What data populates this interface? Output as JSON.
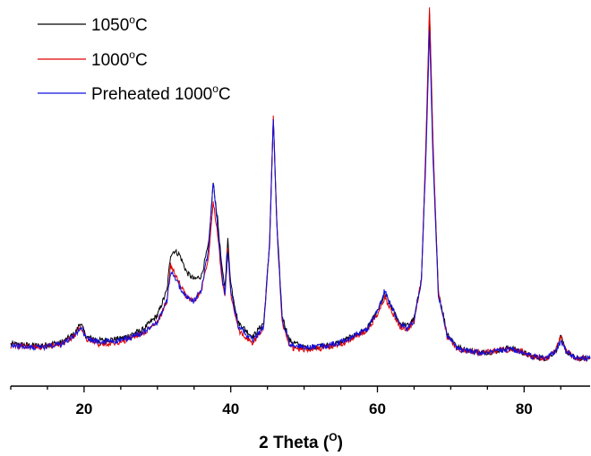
{
  "chart_data": {
    "type": "line",
    "title": "",
    "xlabel": "2 Theta (",
    "xlabel_sup": "O",
    "xlabel_end": ")",
    "ylabel": "",
    "xlim": [
      10,
      89
    ],
    "ylim": [
      0,
      100
    ],
    "x_ticks": [
      20,
      40,
      60,
      80
    ],
    "x_tick_labels": [
      "20",
      "40",
      "60",
      "80"
    ],
    "grid": false,
    "legend_position": "top-left",
    "series": [
      {
        "name": "1050",
        "name_sup": "o",
        "name_end": "C",
        "color": "#000000",
        "points": [
          [
            10,
            7
          ],
          [
            14,
            6.5
          ],
          [
            17,
            7.5
          ],
          [
            18.8,
            10
          ],
          [
            19.5,
            13
          ],
          [
            20.3,
            9
          ],
          [
            22,
            8
          ],
          [
            25,
            8.5
          ],
          [
            28,
            11
          ],
          [
            30,
            15
          ],
          [
            31.3,
            22
          ],
          [
            31.8,
            32
          ],
          [
            32.3,
            33
          ],
          [
            33,
            32
          ],
          [
            34,
            27
          ],
          [
            35,
            25
          ],
          [
            36,
            26
          ],
          [
            37,
            35
          ],
          [
            37.6,
            52
          ],
          [
            38.2,
            42
          ],
          [
            38.8,
            28
          ],
          [
            39.2,
            23
          ],
          [
            39.6,
            36
          ],
          [
            40,
            24
          ],
          [
            41,
            13
          ],
          [
            43,
            9
          ],
          [
            44.5,
            13
          ],
          [
            45.3,
            35
          ],
          [
            45.8,
            70
          ],
          [
            46.3,
            40
          ],
          [
            47,
            15
          ],
          [
            48,
            8
          ],
          [
            50,
            6
          ],
          [
            53,
            6.5
          ],
          [
            55,
            7.5
          ],
          [
            57,
            9.5
          ],
          [
            58.5,
            11
          ],
          [
            60,
            16
          ],
          [
            61,
            21
          ],
          [
            62,
            17
          ],
          [
            63,
            13
          ],
          [
            64,
            12
          ],
          [
            65,
            14
          ],
          [
            66,
            25
          ],
          [
            66.6,
            60
          ],
          [
            67.1,
            100
          ],
          [
            67.6,
            60
          ],
          [
            68.3,
            22
          ],
          [
            69.5,
            10
          ],
          [
            71,
            6
          ],
          [
            74,
            4.5
          ],
          [
            76,
            5
          ],
          [
            78,
            6
          ],
          [
            79.5,
            5
          ],
          [
            81,
            3.5
          ],
          [
            83,
            3
          ],
          [
            84.3,
            5
          ],
          [
            85,
            9
          ],
          [
            85.7,
            5
          ],
          [
            87,
            3
          ],
          [
            89,
            3
          ]
        ]
      },
      {
        "name": "1000",
        "name_sup": "o",
        "name_end": "C",
        "color": "#e00000",
        "points": [
          [
            10,
            6.5
          ],
          [
            14,
            6
          ],
          [
            17,
            7
          ],
          [
            18.8,
            9.5
          ],
          [
            19.5,
            12
          ],
          [
            20.3,
            8.5
          ],
          [
            22,
            7
          ],
          [
            25,
            7.5
          ],
          [
            28,
            10
          ],
          [
            30,
            13
          ],
          [
            31.3,
            19
          ],
          [
            31.8,
            29
          ],
          [
            32.3,
            27
          ],
          [
            33,
            24
          ],
          [
            34,
            20
          ],
          [
            35,
            19
          ],
          [
            36,
            22
          ],
          [
            37,
            32
          ],
          [
            37.6,
            47
          ],
          [
            38.2,
            38
          ],
          [
            38.8,
            25
          ],
          [
            39.2,
            20
          ],
          [
            39.6,
            33
          ],
          [
            40,
            21
          ],
          [
            41,
            11
          ],
          [
            43,
            7
          ],
          [
            44.5,
            12
          ],
          [
            45.3,
            36
          ],
          [
            45.8,
            71
          ],
          [
            46.3,
            40
          ],
          [
            47,
            13
          ],
          [
            48,
            6
          ],
          [
            50,
            5.5
          ],
          [
            53,
            6
          ],
          [
            55,
            7
          ],
          [
            57,
            9
          ],
          [
            58.5,
            10.5
          ],
          [
            60,
            15
          ],
          [
            61,
            20
          ],
          [
            62,
            16
          ],
          [
            63,
            12
          ],
          [
            64,
            11
          ],
          [
            65,
            13
          ],
          [
            66,
            25
          ],
          [
            66.6,
            62
          ],
          [
            67.1,
            101
          ],
          [
            67.6,
            62
          ],
          [
            68.3,
            22
          ],
          [
            69.5,
            9
          ],
          [
            71,
            5.5
          ],
          [
            74,
            4.5
          ],
          [
            76,
            5
          ],
          [
            78,
            5.5
          ],
          [
            79.5,
            5
          ],
          [
            81,
            3.5
          ],
          [
            83,
            3
          ],
          [
            84.3,
            5
          ],
          [
            85,
            9
          ],
          [
            85.7,
            5
          ],
          [
            87,
            3
          ],
          [
            89,
            3
          ]
        ]
      },
      {
        "name": "Preheated 1000",
        "name_sup": "o",
        "name_end": "C",
        "color": "#1010e0",
        "points": [
          [
            10,
            6.5
          ],
          [
            14,
            6
          ],
          [
            17,
            7
          ],
          [
            18.8,
            9.5
          ],
          [
            19.5,
            12
          ],
          [
            20.3,
            8.5
          ],
          [
            22,
            7.5
          ],
          [
            25,
            8
          ],
          [
            28,
            10
          ],
          [
            30,
            13
          ],
          [
            31.3,
            19
          ],
          [
            31.8,
            27
          ],
          [
            32.3,
            26
          ],
          [
            33,
            23
          ],
          [
            34,
            20
          ],
          [
            35,
            19
          ],
          [
            36,
            22
          ],
          [
            37,
            34
          ],
          [
            37.6,
            52
          ],
          [
            38.2,
            40
          ],
          [
            38.8,
            26
          ],
          [
            39.2,
            21
          ],
          [
            39.6,
            33
          ],
          [
            40,
            22
          ],
          [
            41,
            12
          ],
          [
            43,
            8
          ],
          [
            44.5,
            12
          ],
          [
            45.3,
            35
          ],
          [
            45.8,
            70
          ],
          [
            46.3,
            39
          ],
          [
            47,
            14
          ],
          [
            48,
            7
          ],
          [
            50,
            6
          ],
          [
            53,
            6.5
          ],
          [
            55,
            7.5
          ],
          [
            57,
            9.5
          ],
          [
            58.5,
            11
          ],
          [
            60,
            16
          ],
          [
            61,
            22
          ],
          [
            62,
            17
          ],
          [
            63,
            12.5
          ],
          [
            64,
            11.5
          ],
          [
            65,
            13.5
          ],
          [
            66,
            25
          ],
          [
            66.6,
            58
          ],
          [
            67.1,
            95
          ],
          [
            67.6,
            57
          ],
          [
            68.3,
            21
          ],
          [
            69.5,
            9.5
          ],
          [
            71,
            5.5
          ],
          [
            74,
            4.5
          ],
          [
            76,
            5
          ],
          [
            78,
            5.5
          ],
          [
            79.5,
            5
          ],
          [
            81,
            3.5
          ],
          [
            83,
            3
          ],
          [
            84.3,
            5
          ],
          [
            85,
            8
          ],
          [
            85.7,
            5
          ],
          [
            87,
            3
          ],
          [
            89,
            3
          ]
        ]
      }
    ]
  }
}
